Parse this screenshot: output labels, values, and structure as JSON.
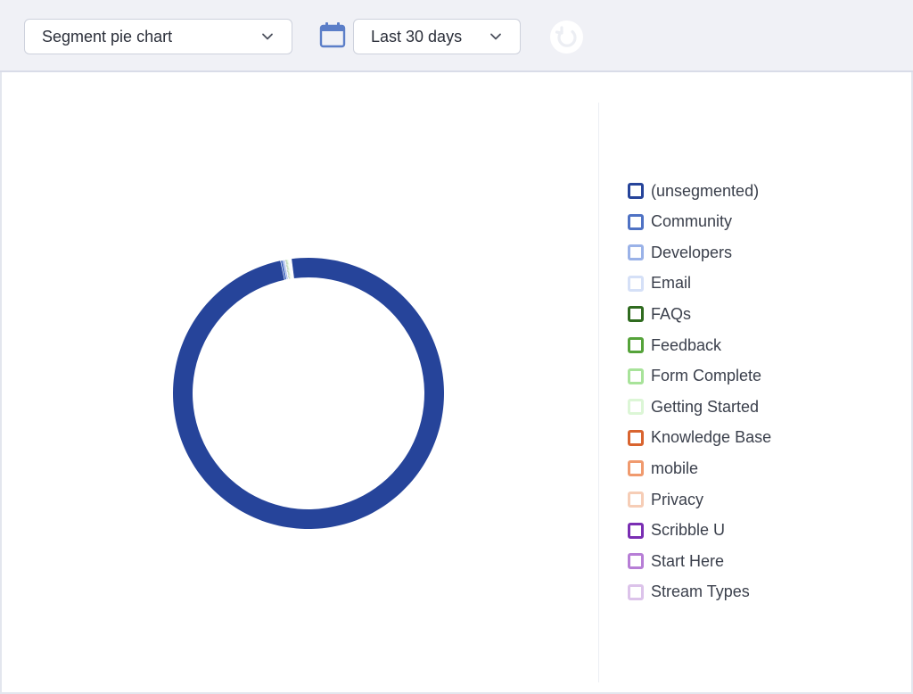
{
  "toolbar": {
    "chart_selector": {
      "value": "Segment pie chart",
      "icon": "chevron-down-icon"
    },
    "calendar_icon": "calendar-icon",
    "date_range": {
      "value": "Last 30 days",
      "icon": "chevron-down-icon"
    },
    "refresh_icon": "refresh-icon"
  },
  "colors": {
    "accent": "#5b7ec8",
    "toolbar_bg": "#f0f1f6"
  },
  "legend": [
    {
      "label": "(unsegmented)",
      "color": "#26449a"
    },
    {
      "label": "Community",
      "color": "#4f72c4"
    },
    {
      "label": "Developers",
      "color": "#9ab2e8"
    },
    {
      "label": "Email",
      "color": "#d5e0f7"
    },
    {
      "label": "FAQs",
      "color": "#2f6b1f"
    },
    {
      "label": "Feedback",
      "color": "#55a33a"
    },
    {
      "label": "Form Complete",
      "color": "#a8e39a"
    },
    {
      "label": "Getting Started",
      "color": "#dcf6d6"
    },
    {
      "label": "Knowledge Base",
      "color": "#d9642f"
    },
    {
      "label": "mobile",
      "color": "#f09a6e"
    },
    {
      "label": "Privacy",
      "color": "#f6cdb6"
    },
    {
      "label": "Scribble U",
      "color": "#7a2eb3"
    },
    {
      "label": "Start Here",
      "color": "#b77ed6"
    },
    {
      "label": "Stream Types",
      "color": "#dcc3ea"
    }
  ],
  "chart_data": {
    "type": "pie",
    "categories": [
      "(unsegmented)",
      "Community",
      "Developers",
      "Email",
      "FAQs",
      "Feedback",
      "Form Complete",
      "Getting Started",
      "Knowledge Base",
      "mobile",
      "Privacy",
      "Scribble U",
      "Start Here",
      "Stream Types"
    ],
    "values": [
      98.8,
      0.3,
      0.2,
      0.1,
      0.1,
      0.1,
      0.1,
      0.1,
      0.05,
      0.05,
      0.05,
      0.05,
      0.05,
      0.05
    ],
    "donut": true
  }
}
